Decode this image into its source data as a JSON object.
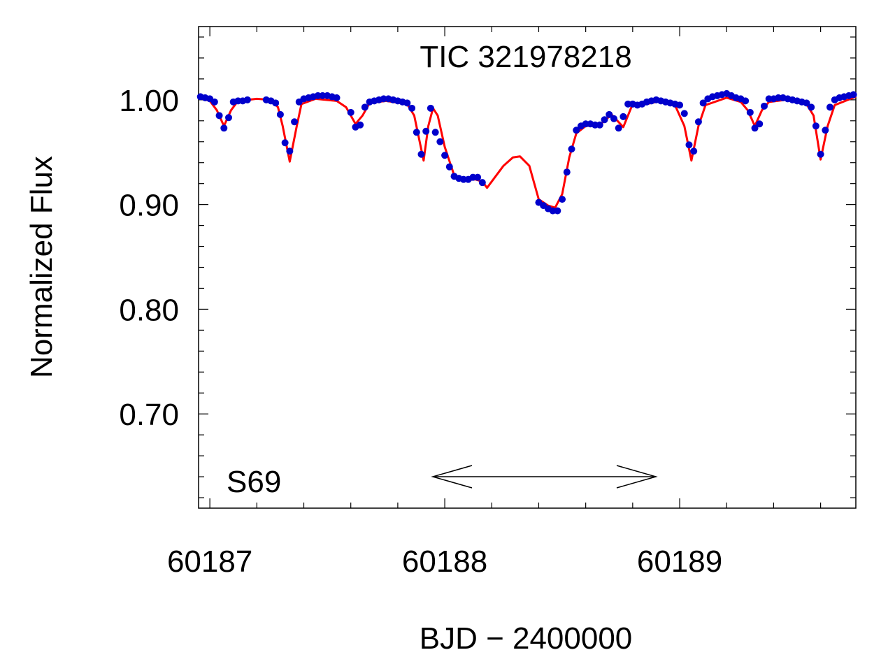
{
  "chart_data": {
    "type": "scatter",
    "title": "TIC 321978218",
    "annotation": "S69",
    "x_label": "BJD − 2400000",
    "y_label": "Normalized Flux",
    "xlim": [
      60186.952,
      60189.75
    ],
    "ylim": [
      0.61,
      1.07
    ],
    "xticks": [
      60187,
      60188,
      60189
    ],
    "yticks": [
      {
        "value": 1.0,
        "label": "1.00"
      },
      {
        "value": 0.9,
        "label": "0.90"
      },
      {
        "value": 0.8,
        "label": "0.80"
      },
      {
        "value": 0.7,
        "label": "0.70"
      }
    ],
    "xminor": [
      60187.2,
      60187.4,
      60187.6,
      60187.8,
      60188.2,
      60188.4,
      60188.6,
      60188.8,
      60189.2,
      60189.4,
      60189.6
    ],
    "yminor": [
      0.62,
      0.64,
      0.66,
      0.68,
      0.72,
      0.74,
      0.76,
      0.78,
      0.82,
      0.84,
      0.86,
      0.88,
      0.92,
      0.94,
      0.96,
      0.98,
      1.02,
      1.04,
      1.06
    ],
    "series": [
      {
        "style": "points",
        "color": "#0000cc",
        "x": [
          60186.96,
          60186.98,
          60187.0,
          60187.02,
          60187.04,
          60187.06,
          60187.08,
          60187.1,
          60187.12,
          60187.14,
          60187.16,
          60187.24,
          60187.26,
          60187.28,
          60187.3,
          60187.32,
          60187.34,
          60187.36,
          60187.38,
          60187.4,
          60187.42,
          60187.44,
          60187.46,
          60187.48,
          60187.5,
          60187.52,
          60187.54,
          60187.6,
          60187.62,
          60187.64,
          60187.66,
          60187.68,
          60187.7,
          60187.72,
          60187.74,
          60187.76,
          60187.78,
          60187.8,
          60187.82,
          60187.84,
          60187.86,
          60187.88,
          60187.9,
          60187.92,
          60187.94,
          60187.96,
          60187.98,
          60188.0,
          60188.02,
          60188.04,
          60188.06,
          60188.08,
          60188.1,
          60188.12,
          60188.14,
          60188.16,
          60188.4,
          60188.42,
          60188.44,
          60188.46,
          60188.48,
          60188.5,
          60188.52,
          60188.54,
          60188.56,
          60188.58,
          60188.6,
          60188.62,
          60188.64,
          60188.66,
          60188.68,
          60188.7,
          60188.72,
          60188.74,
          60188.76,
          60188.78,
          60188.8,
          60188.82,
          60188.84,
          60188.86,
          60188.88,
          60188.9,
          60188.92,
          60188.94,
          60188.96,
          60188.98,
          60189.0,
          60189.02,
          60189.04,
          60189.06,
          60189.08,
          60189.1,
          60189.12,
          60189.14,
          60189.16,
          60189.18,
          60189.2,
          60189.22,
          60189.24,
          60189.26,
          60189.28,
          60189.3,
          60189.32,
          60189.34,
          60189.36,
          60189.38,
          60189.4,
          60189.42,
          60189.44,
          60189.46,
          60189.48,
          60189.5,
          60189.52,
          60189.54,
          60189.56,
          60189.58,
          60189.6,
          60189.62,
          60189.64,
          60189.66,
          60189.68,
          60189.7,
          60189.72,
          60189.74
        ],
        "values": [
          1.003,
          1.002,
          1.001,
          0.998,
          0.985,
          0.973,
          0.983,
          0.998,
          0.999,
          0.999,
          1.0,
          1.0,
          0.999,
          0.997,
          0.986,
          0.959,
          0.951,
          0.979,
          0.998,
          1.001,
          1.002,
          1.003,
          1.004,
          1.004,
          1.004,
          1.003,
          1.002,
          0.988,
          0.974,
          0.976,
          0.993,
          0.998,
          0.999,
          1.0,
          1.001,
          1.001,
          1.0,
          0.999,
          0.998,
          0.997,
          0.992,
          0.969,
          0.948,
          0.97,
          0.992,
          0.969,
          0.96,
          0.947,
          0.936,
          0.927,
          0.925,
          0.924,
          0.924,
          0.926,
          0.926,
          0.921,
          0.902,
          0.899,
          0.896,
          0.894,
          0.894,
          0.905,
          0.931,
          0.953,
          0.971,
          0.975,
          0.977,
          0.977,
          0.976,
          0.976,
          0.981,
          0.986,
          0.982,
          0.973,
          0.984,
          0.996,
          0.996,
          0.995,
          0.996,
          0.998,
          0.999,
          1.0,
          0.999,
          0.998,
          0.997,
          0.996,
          0.995,
          0.987,
          0.957,
          0.951,
          0.979,
          0.997,
          1.001,
          1.003,
          1.004,
          1.005,
          1.006,
          1.004,
          1.002,
          1.001,
          0.999,
          0.988,
          0.973,
          0.977,
          0.994,
          1.001,
          1.001,
          1.002,
          1.002,
          1.001,
          1.0,
          0.999,
          0.998,
          0.997,
          0.993,
          0.975,
          0.948,
          0.971,
          0.993,
          1.0,
          1.002,
          1.003,
          1.004,
          1.005
        ]
      },
      {
        "style": "line",
        "color": "#ff0000",
        "x": [
          60186.952,
          60187.0,
          60187.03,
          60187.06,
          60187.09,
          60187.12,
          60187.2,
          60187.26,
          60187.29,
          60187.31,
          60187.34,
          60187.37,
          60187.39,
          60187.45,
          60187.54,
          60187.58,
          60187.62,
          60187.65,
          60187.68,
          60187.75,
          60187.84,
          60187.87,
          60187.91,
          60187.93,
          60187.95,
          60187.97,
          60188.0,
          60188.04,
          60188.08,
          60188.13,
          60188.16,
          60188.18,
          60188.21,
          60188.25,
          60188.29,
          60188.32,
          60188.36,
          60188.4,
          60188.44,
          60188.47,
          60188.5,
          60188.53,
          60188.56,
          60188.6,
          60188.66,
          60188.71,
          60188.76,
          60188.8,
          60188.86,
          60188.94,
          60188.98,
          60189.02,
          60189.05,
          60189.08,
          60189.11,
          60189.2,
          60189.26,
          60189.29,
          60189.32,
          60189.35,
          60189.38,
          60189.45,
          60189.54,
          60189.57,
          60189.6,
          60189.63,
          60189.66,
          60189.75
        ],
        "values": [
          1.002,
          0.999,
          0.99,
          0.975,
          0.99,
          0.999,
          1.001,
          1.0,
          0.993,
          0.975,
          0.941,
          0.975,
          0.996,
          1.001,
          0.999,
          0.993,
          0.977,
          0.985,
          0.997,
          0.999,
          0.996,
          0.985,
          0.942,
          0.975,
          0.992,
          0.985,
          0.955,
          0.928,
          0.923,
          0.924,
          0.922,
          0.916,
          0.925,
          0.937,
          0.945,
          0.946,
          0.937,
          0.905,
          0.899,
          0.897,
          0.91,
          0.945,
          0.968,
          0.975,
          0.976,
          0.986,
          0.974,
          0.996,
          0.996,
          1.0,
          0.995,
          0.975,
          0.942,
          0.975,
          0.995,
          1.002,
          0.998,
          0.99,
          0.975,
          0.99,
          0.998,
          1.0,
          0.996,
          0.985,
          0.943,
          0.975,
          0.995,
          1.003
        ]
      }
    ]
  }
}
